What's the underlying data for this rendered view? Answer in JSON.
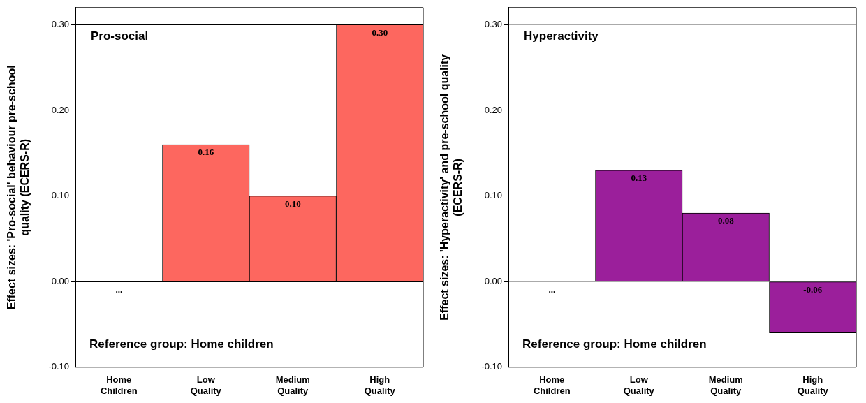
{
  "chart_data": [
    {
      "type": "bar",
      "title": "Pro-social",
      "ylabel": "Effect sizes: 'Pro-social' behaviour pre-school\nquality (ECERS-R)",
      "annotations": [
        "Reference group: Home children"
      ],
      "categories": [
        "Home\nChildren",
        "Low\nQuality",
        "Medium\nQuality",
        "High\nQuality"
      ],
      "values": [
        0,
        0.16,
        0.1,
        0.3
      ],
      "value_labels": [
        "...",
        "0.16",
        "0.10",
        "0.30"
      ],
      "color": "#fd675f",
      "ylim": [
        -0.1,
        0.32
      ],
      "yticks": [
        {
          "value": -0.1,
          "label": "-0.10"
        },
        {
          "value": 0,
          "label": "0.00"
        },
        {
          "value": 0.1,
          "label": "0.10"
        },
        {
          "value": 0.2,
          "label": "0.20"
        },
        {
          "value": 0.3,
          "label": "0.30"
        }
      ],
      "grid": "y"
    },
    {
      "type": "bar",
      "title": "Hyperactivity",
      "ylabel": "Effect sizes: 'Hyperactivity' and pre-school quality\n(ECERS-R)",
      "annotations": [
        "Reference group: Home children"
      ],
      "categories": [
        "Home\nChildren",
        "Low\nQuality",
        "Medium\nQuality",
        "High\nQuality"
      ],
      "values": [
        0,
        0.13,
        0.08,
        -0.06
      ],
      "value_labels": [
        "...",
        "0.13",
        "0.08",
        "-0.06"
      ],
      "color": "#9b1f9b",
      "ylim": [
        -0.1,
        0.32
      ],
      "yticks": [
        {
          "value": -0.1,
          "label": "-0.10"
        },
        {
          "value": 0,
          "label": "0.00"
        },
        {
          "value": 0.1,
          "label": "0.10"
        },
        {
          "value": 0.2,
          "label": "0.20"
        },
        {
          "value": 0.3,
          "label": "0.30"
        }
      ],
      "grid": "y"
    }
  ]
}
